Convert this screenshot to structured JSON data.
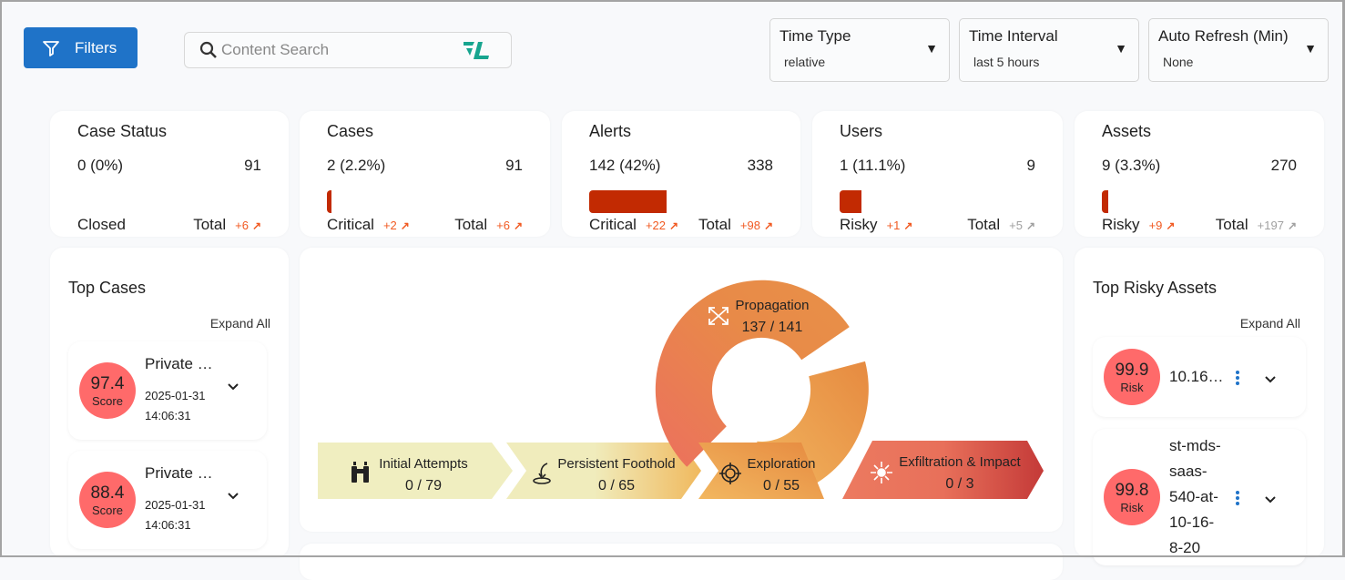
{
  "toolbar": {
    "filters_label": "Filters",
    "search_placeholder": "Content Search",
    "logo_text": "FL"
  },
  "selects": [
    {
      "label": "Time Type",
      "value": "relative"
    },
    {
      "label": "Time Interval",
      "value": "last 5 hours"
    },
    {
      "label": "Auto Refresh (Min)",
      "value": "None"
    }
  ],
  "stats": [
    {
      "title": "Case Status",
      "count": "0 (0%)",
      "total": "91",
      "bar_percent": 0,
      "left_label": "Closed",
      "left_delta": "",
      "total_label": "Total",
      "total_delta": "+6",
      "total_delta_color": "#f15a22"
    },
    {
      "title": "Cases",
      "count": "2 (2.2%)",
      "total": "91",
      "bar_percent": 2.2,
      "left_label": "Critical",
      "left_delta": "+2",
      "total_label": "Total",
      "total_delta": "+6",
      "total_delta_color": "#f15a22"
    },
    {
      "title": "Alerts",
      "count": "142 (42%)",
      "total": "338",
      "bar_percent": 42,
      "left_label": "Critical",
      "left_delta": "+22",
      "total_label": "Total",
      "total_delta": "+98",
      "total_delta_color": "#f15a22"
    },
    {
      "title": "Users",
      "count": "1 (11.1%)",
      "total": "9",
      "bar_percent": 11.1,
      "left_label": "Risky",
      "left_delta": "+1",
      "total_label": "Total",
      "total_delta": "+5",
      "total_delta_color": "#a0a0a0"
    },
    {
      "title": "Assets",
      "count": "9 (3.3%)",
      "total": "270",
      "bar_percent": 3.3,
      "left_label": "Risky",
      "left_delta": "+9",
      "total_label": "Total",
      "total_delta": "+197",
      "total_delta_color": "#a0a0a0"
    }
  ],
  "top_cases": {
    "title": "Top Cases",
    "expand_label": "Expand All",
    "items": [
      {
        "score": "97.4",
        "score_label": "Score",
        "name": "Private …",
        "date": "2025-01-31",
        "time": "14:06:31"
      },
      {
        "score": "88.4",
        "score_label": "Score",
        "name": "Private …",
        "date": "2025-01-31",
        "time": "14:06:31"
      }
    ]
  },
  "kill_chain": [
    {
      "name": "Initial Attempts",
      "value": "0 / 79",
      "icon": "binoculars-icon"
    },
    {
      "name": "Persistent Foothold",
      "value": "0 / 65",
      "icon": "foothold-icon"
    },
    {
      "name": "Exploration",
      "value": "0 / 55",
      "icon": "crosshair-icon"
    },
    {
      "name": "Propagation",
      "value": "137 / 141",
      "icon": "arrows-cross-icon"
    },
    {
      "name": "Exfiltration & Impact",
      "value": "0 / 3",
      "icon": "burst-icon"
    }
  ],
  "top_assets": {
    "title": "Top Risky Assets",
    "expand_label": "Expand All",
    "items": [
      {
        "score": "99.9",
        "score_label": "Risk",
        "name": "10.16…"
      },
      {
        "score": "99.8",
        "score_label": "Risk",
        "name": "st-mds-saas-540-at-10-16-8-20"
      }
    ]
  },
  "colors": {
    "accent": "#1f73c8",
    "bar": "#c22a02",
    "score_circle": "#ff6a6a",
    "delta_up": "#f15a22",
    "delta_neutral": "#a0a0a0"
  }
}
